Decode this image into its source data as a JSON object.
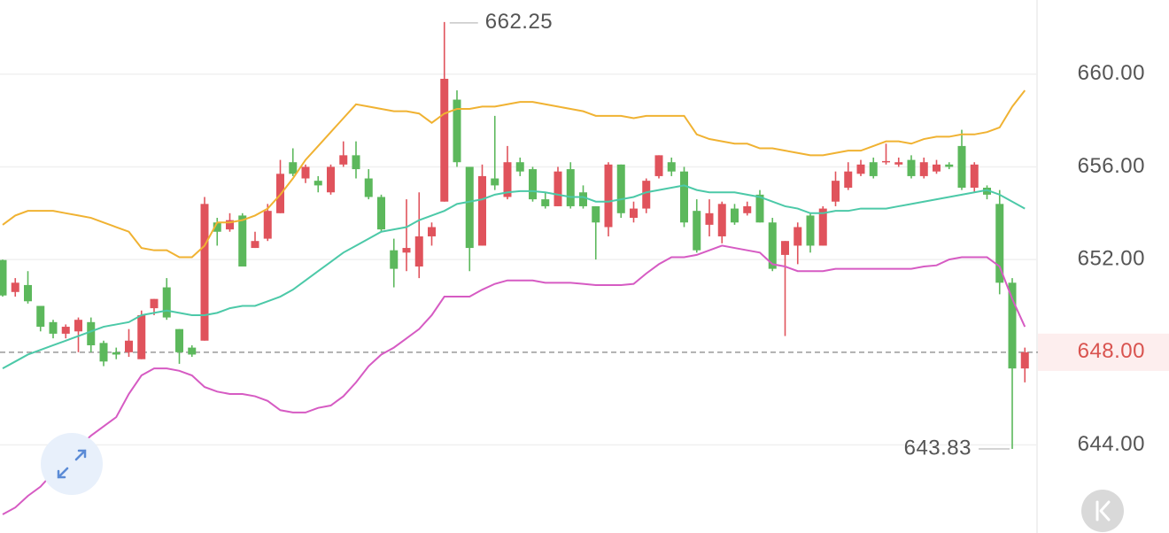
{
  "chart_data": {
    "type": "candlestick",
    "up_color": "#e0535c",
    "down_color": "#5cb85c",
    "ylim": [
      640.2,
      663.2
    ],
    "yticks": [
      {
        "value": 644,
        "label": "644.00"
      },
      {
        "value": 652,
        "label": "652.00"
      },
      {
        "value": 656,
        "label": "656.00"
      },
      {
        "value": 660,
        "label": "660.00"
      }
    ],
    "grid": true,
    "price_line": {
      "value": 648,
      "label": "648.00",
      "color": "#d9534f"
    },
    "open": [
      651.98,
      650.6,
      650.9,
      650.0,
      649.3,
      648.8,
      648.9,
      649.3,
      648.4,
      648.0,
      648.0,
      647.7,
      649.9,
      650.8,
      649.0,
      648.2,
      648.5,
      653.6,
      653.3,
      653.9,
      652.5,
      652.9,
      654.0,
      656.2,
      655.5,
      655.4,
      654.9,
      656.1,
      656.5,
      655.5,
      654.7,
      652.4,
      652.3,
      651.7,
      653.0,
      654.5,
      658.9,
      656.0,
      652.6,
      655.5,
      654.7,
      656.2,
      655.9,
      654.6,
      654.3,
      655.9,
      654.9,
      654.3,
      653.4,
      656.1,
      653.8,
      654.2,
      655.6,
      656.2,
      655.8,
      654.1,
      653.5,
      653.0,
      654.2,
      654.0,
      654.8,
      653.6,
      652.2,
      652.6,
      653.9,
      652.6,
      654.5,
      655.1,
      655.7,
      656.2,
      656.2,
      656.1,
      656.3,
      655.6,
      655.8,
      656.1,
      656.9,
      655.1,
      655.1,
      654.4,
      651.0,
      647.3
    ],
    "close": [
      650.45,
      651.0,
      650.2,
      649.1,
      648.8,
      649.1,
      649.4,
      648.3,
      647.6,
      647.9,
      648.5,
      649.6,
      650.3,
      649.5,
      648.0,
      647.9,
      654.4,
      653.2,
      653.7,
      651.7,
      652.8,
      654.1,
      655.7,
      655.7,
      656.0,
      655.2,
      656.0,
      656.5,
      655.9,
      654.7,
      653.3,
      651.6,
      652.5,
      653.0,
      653.4,
      659.8,
      656.2,
      652.5,
      655.6,
      655.2,
      656.2,
      655.8,
      654.6,
      654.3,
      655.8,
      654.3,
      654.3,
      653.6,
      656.1,
      654.0,
      654.2,
      655.4,
      656.5,
      655.8,
      653.6,
      652.4,
      654.0,
      654.4,
      653.6,
      654.3,
      653.6,
      651.6,
      652.8,
      653.4,
      652.6,
      654.2,
      655.4,
      655.8,
      656.1,
      655.6,
      656.25,
      656.2,
      655.6,
      656.2,
      656.1,
      656.0,
      655.1,
      656.1,
      654.8,
      651.0,
      647.3,
      648.0
    ],
    "high": [
      652.0,
      651.2,
      651.5,
      650.0,
      649.4,
      649.2,
      649.5,
      649.5,
      648.5,
      648.2,
      649.0,
      649.8,
      650.3,
      651.2,
      649.0,
      648.3,
      654.7,
      653.8,
      654.0,
      654.0,
      653.2,
      654.4,
      656.3,
      656.8,
      656.1,
      655.6,
      656.1,
      657.1,
      657.1,
      655.9,
      654.8,
      652.9,
      654.6,
      654.9,
      653.6,
      662.25,
      659.3,
      656.0,
      656.1,
      658.2,
      656.9,
      656.4,
      656.0,
      654.9,
      656.0,
      656.2,
      655.2,
      654.3,
      656.2,
      656.1,
      654.5,
      655.5,
      656.5,
      656.4,
      656.0,
      654.6,
      654.6,
      654.5,
      654.4,
      654.5,
      655.0,
      653.8,
      652.8,
      653.6,
      654.0,
      654.3,
      655.8,
      656.2,
      656.3,
      656.4,
      657.0,
      656.4,
      656.5,
      656.4,
      656.3,
      656.2,
      657.6,
      656.2,
      655.2,
      655.0,
      651.2,
      648.2
    ],
    "low": [
      650.4,
      650.4,
      650.1,
      648.9,
      648.6,
      648.6,
      648.0,
      648.0,
      647.4,
      647.7,
      647.8,
      647.7,
      649.6,
      649.4,
      647.5,
      647.8,
      648.5,
      652.6,
      653.2,
      651.7,
      652.5,
      652.8,
      654.0,
      655.6,
      655.3,
      654.9,
      654.8,
      656.0,
      655.5,
      654.6,
      653.2,
      650.8,
      651.5,
      651.2,
      652.6,
      654.5,
      656.0,
      651.5,
      652.6,
      655.0,
      654.6,
      655.6,
      654.5,
      654.2,
      654.3,
      654.2,
      654.2,
      652.0,
      653.0,
      653.8,
      653.6,
      654.0,
      655.5,
      655.6,
      653.4,
      652.3,
      653.0,
      652.7,
      653.5,
      653.9,
      653.6,
      651.5,
      648.7,
      651.8,
      652.3,
      652.6,
      654.3,
      655.0,
      655.6,
      655.5,
      656.1,
      656.0,
      655.5,
      655.5,
      655.7,
      655.9,
      655.0,
      654.9,
      654.6,
      650.5,
      643.83,
      646.7
    ],
    "max_label": 35,
    "min_label": 80,
    "bands": [
      {
        "color": "#f0b232",
        "values": [
          653.5,
          653.9,
          654.1,
          654.1,
          654.1,
          654.0,
          653.9,
          653.8,
          653.6,
          653.4,
          653.2,
          652.5,
          652.4,
          652.4,
          652.1,
          652.1,
          652.6,
          653.6,
          653.6,
          653.7,
          653.9,
          654.2,
          654.8,
          655.5,
          656.3,
          656.9,
          657.5,
          658.1,
          658.7,
          658.6,
          658.5,
          658.4,
          658.4,
          658.3,
          657.9,
          658.3,
          658.5,
          658.5,
          658.6,
          658.6,
          658.7,
          658.8,
          658.8,
          658.7,
          658.6,
          658.5,
          658.4,
          658.2,
          658.2,
          658.2,
          658.1,
          658.2,
          658.2,
          658.2,
          658.2,
          657.4,
          657.2,
          657.1,
          657.0,
          657.0,
          656.8,
          656.8,
          656.7,
          656.6,
          656.5,
          656.5,
          656.6,
          656.7,
          656.7,
          656.9,
          657.1,
          657.1,
          657.0,
          657.2,
          657.3,
          657.3,
          657.4,
          657.4,
          657.5,
          657.7,
          658.6,
          659.3
        ]
      },
      {
        "color": "#4cc9a8",
        "values": [
          647.3,
          647.6,
          647.9,
          648.1,
          648.3,
          648.5,
          648.7,
          648.9,
          649.1,
          649.2,
          649.3,
          649.6,
          649.7,
          649.8,
          649.7,
          649.6,
          649.6,
          649.7,
          649.9,
          650.0,
          650.0,
          650.2,
          650.4,
          650.7,
          651.1,
          651.5,
          651.9,
          652.3,
          652.6,
          652.9,
          653.2,
          653.3,
          653.4,
          653.7,
          653.9,
          654.1,
          654.4,
          654.5,
          654.6,
          654.8,
          654.9,
          654.95,
          654.95,
          654.9,
          654.8,
          654.7,
          654.7,
          654.5,
          654.5,
          654.6,
          654.7,
          654.9,
          655.0,
          655.1,
          655.2,
          655.0,
          654.9,
          654.9,
          654.9,
          654.8,
          654.7,
          654.5,
          654.3,
          654.2,
          654.0,
          654.0,
          654.1,
          654.1,
          654.2,
          654.2,
          654.2,
          654.3,
          654.4,
          654.5,
          654.6,
          654.7,
          654.8,
          654.9,
          655.0,
          654.8,
          654.5,
          654.2
        ]
      },
      {
        "color": "#d65bc3",
        "values": [
          641.0,
          641.3,
          641.8,
          642.2,
          642.8,
          643.3,
          643.9,
          644.4,
          644.8,
          645.2,
          646.2,
          647.0,
          647.3,
          647.3,
          647.2,
          647.0,
          646.5,
          646.3,
          646.2,
          646.2,
          646.1,
          645.9,
          645.5,
          645.4,
          645.4,
          645.6,
          645.7,
          646.1,
          646.7,
          647.4,
          647.9,
          648.2,
          648.6,
          649.0,
          649.6,
          650.4,
          650.4,
          650.4,
          650.7,
          650.95,
          651.1,
          651.1,
          651.1,
          651.0,
          651.0,
          651.0,
          650.95,
          650.9,
          650.9,
          650.9,
          650.95,
          651.4,
          651.8,
          652.1,
          652.1,
          652.2,
          652.4,
          652.6,
          652.5,
          652.4,
          652.3,
          651.8,
          651.7,
          651.5,
          651.5,
          651.5,
          651.6,
          651.6,
          651.6,
          651.6,
          651.6,
          651.6,
          651.6,
          651.7,
          651.75,
          652.0,
          652.1,
          652.1,
          652.1,
          651.7,
          650.3,
          649.1
        ]
      }
    ]
  }
}
